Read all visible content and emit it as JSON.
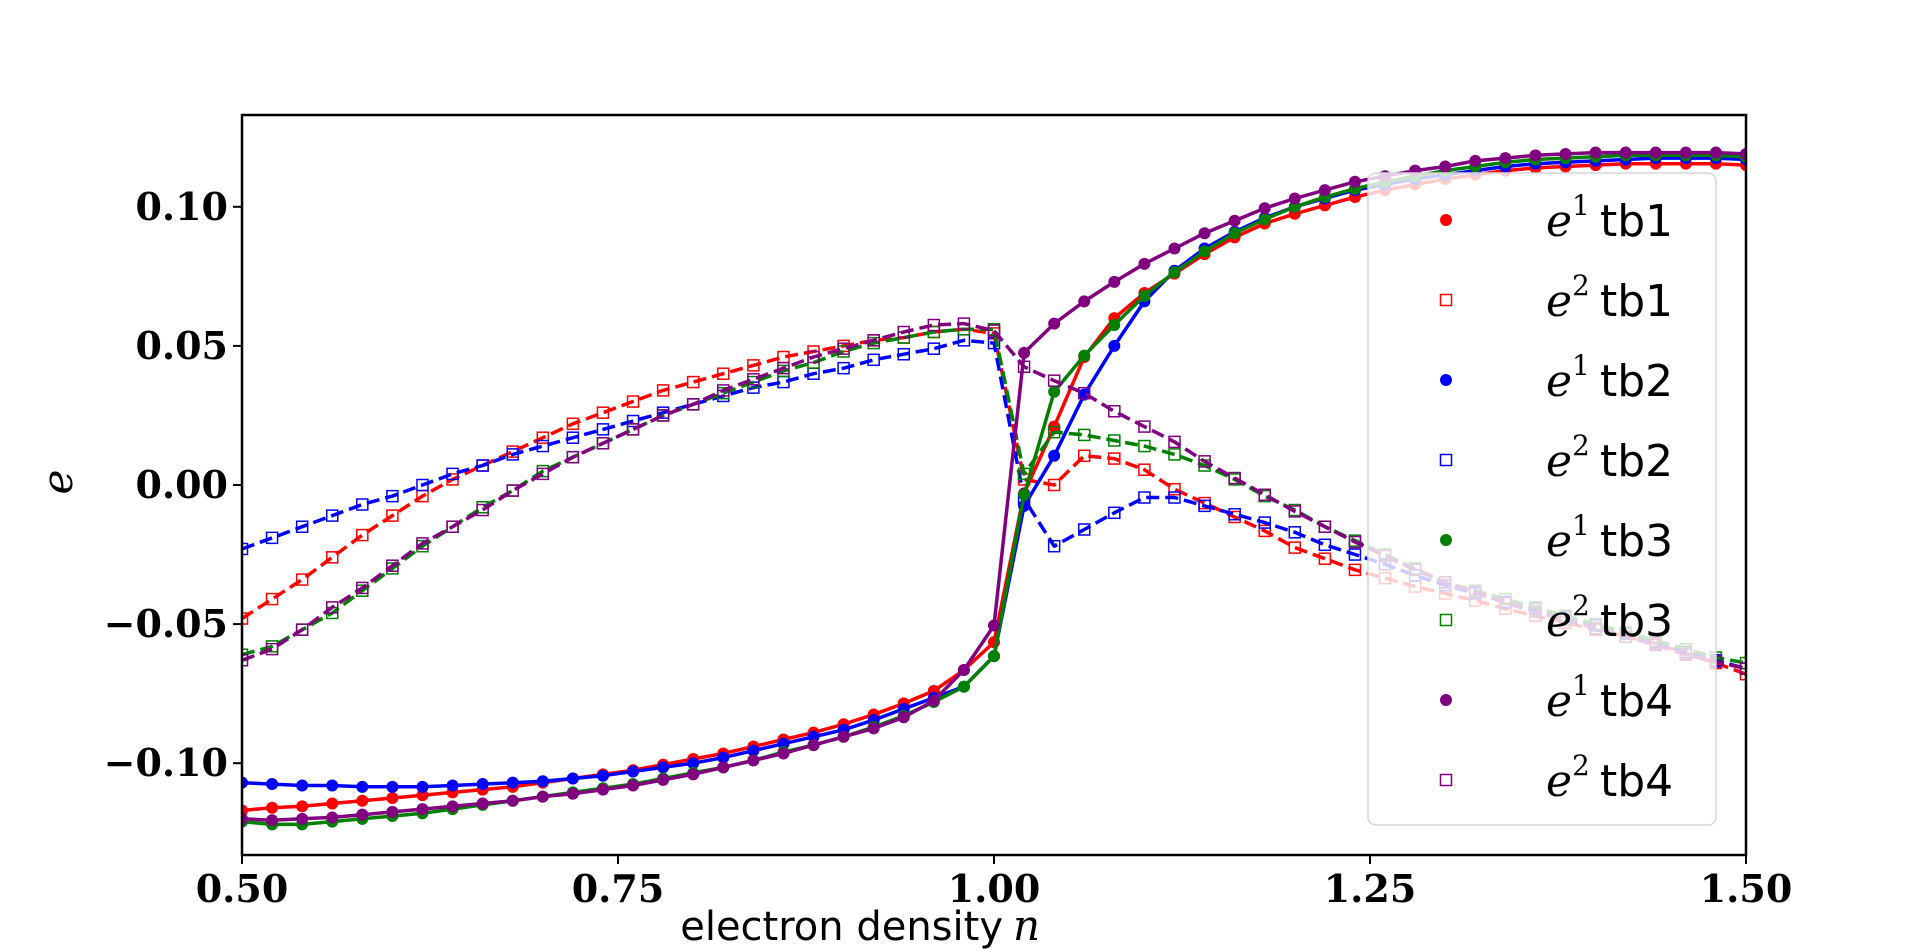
{
  "chart_data": {
    "type": "line",
    "title": "",
    "xlabel": "electron density",
    "xlabel_var": "n",
    "ylabel": "e",
    "xlim": [
      0.5,
      1.5
    ],
    "ylim": [
      -0.133,
      0.133
    ],
    "xticks": [
      0.5,
      0.75,
      1.0,
      1.25,
      1.5
    ],
    "xtick_labels": [
      "0.50",
      "0.75",
      "1.00",
      "1.25",
      "1.50"
    ],
    "yticks": [
      0.1,
      0.05,
      0.0,
      -0.05,
      -0.1
    ],
    "ytick_labels": [
      "0.10",
      "0.05",
      "0.00",
      "−0.05",
      "−0.10"
    ],
    "grid": false,
    "legend_position": "right",
    "x": [
      0.5,
      0.52,
      0.54,
      0.56,
      0.58,
      0.6,
      0.62,
      0.64,
      0.66,
      0.68,
      0.7,
      0.72,
      0.74,
      0.76,
      0.78,
      0.8,
      0.82,
      0.84,
      0.86,
      0.88,
      0.9,
      0.92,
      0.94,
      0.96,
      0.98,
      1.0,
      1.02,
      1.04,
      1.06,
      1.08,
      1.1,
      1.12,
      1.14,
      1.16,
      1.18,
      1.2,
      1.22,
      1.24,
      1.26,
      1.28,
      1.3,
      1.32,
      1.34,
      1.36,
      1.38,
      1.4,
      1.42,
      1.44,
      1.46,
      1.48,
      1.5
    ],
    "series": [
      {
        "name": "tb1",
        "quantity": "e",
        "sup": "1",
        "color": "#ff0000",
        "style": "solid",
        "marker": "filled-circle",
        "values": [
          -0.117,
          -0.116,
          -0.1155,
          -0.1145,
          -0.1135,
          -0.1125,
          -0.1115,
          -0.1105,
          -0.1095,
          -0.1085,
          -0.107,
          -0.1055,
          -0.104,
          -0.1025,
          -0.1005,
          -0.0985,
          -0.0965,
          -0.094,
          -0.0915,
          -0.089,
          -0.086,
          -0.0825,
          -0.0785,
          -0.074,
          -0.0665,
          -0.0565,
          -0.003,
          0.021,
          0.046,
          0.06,
          0.069,
          0.076,
          0.083,
          0.089,
          0.094,
          0.0975,
          0.1005,
          0.1035,
          0.106,
          0.108,
          0.11,
          0.1115,
          0.113,
          0.114,
          0.1145,
          0.115,
          0.1155,
          0.1155,
          0.1155,
          0.1155,
          0.115
        ]
      },
      {
        "name": "tb1",
        "quantity": "e",
        "sup": "2",
        "color": "#ff0000",
        "style": "dashed",
        "marker": "open-square",
        "values": [
          -0.048,
          -0.041,
          -0.034,
          -0.026,
          -0.018,
          -0.011,
          -0.004,
          0.002,
          0.007,
          0.012,
          0.017,
          0.022,
          0.026,
          0.03,
          0.034,
          0.037,
          0.04,
          0.043,
          0.046,
          0.048,
          0.05,
          0.052,
          0.053,
          0.055,
          0.056,
          0.0545,
          0.002,
          0.0,
          0.0105,
          0.0095,
          0.0055,
          -0.0015,
          -0.0065,
          -0.0115,
          -0.0165,
          -0.0225,
          -0.0265,
          -0.0305,
          -0.0335,
          -0.0365,
          -0.039,
          -0.0415,
          -0.0445,
          -0.047,
          -0.0495,
          -0.052,
          -0.0545,
          -0.057,
          -0.0605,
          -0.064,
          -0.068
        ]
      },
      {
        "name": "tb2",
        "quantity": "e",
        "sup": "1",
        "color": "#0000ff",
        "style": "solid",
        "marker": "filled-circle",
        "values": [
          -0.107,
          -0.1075,
          -0.108,
          -0.108,
          -0.1085,
          -0.1085,
          -0.1085,
          -0.108,
          -0.1075,
          -0.107,
          -0.1065,
          -0.1055,
          -0.1045,
          -0.103,
          -0.1015,
          -0.1,
          -0.098,
          -0.0955,
          -0.093,
          -0.0905,
          -0.088,
          -0.0845,
          -0.0805,
          -0.0765,
          -0.0725,
          -0.0615,
          -0.0075,
          0.0105,
          0.0325,
          0.05,
          0.066,
          0.077,
          0.085,
          0.091,
          0.096,
          0.1,
          0.103,
          0.106,
          0.108,
          0.11,
          0.1115,
          0.113,
          0.1145,
          0.1155,
          0.116,
          0.1165,
          0.117,
          0.1175,
          0.1175,
          0.1175,
          0.117
        ]
      },
      {
        "name": "tb2",
        "quantity": "e",
        "sup": "2",
        "color": "#0000ff",
        "style": "dashed",
        "marker": "open-square",
        "values": [
          -0.023,
          -0.019,
          -0.015,
          -0.011,
          -0.007,
          -0.004,
          0.0,
          0.004,
          0.007,
          0.011,
          0.014,
          0.017,
          0.02,
          0.023,
          0.026,
          0.029,
          0.032,
          0.035,
          0.037,
          0.04,
          0.042,
          0.045,
          0.047,
          0.049,
          0.052,
          0.051,
          -0.005,
          -0.022,
          -0.016,
          -0.01,
          -0.0045,
          -0.0045,
          -0.0075,
          -0.0105,
          -0.0135,
          -0.017,
          -0.0215,
          -0.025,
          -0.0285,
          -0.0325,
          -0.036,
          -0.039,
          -0.042,
          -0.0445,
          -0.0475,
          -0.0505,
          -0.0535,
          -0.0565,
          -0.06,
          -0.063,
          -0.066
        ]
      },
      {
        "name": "tb3",
        "quantity": "e",
        "sup": "1",
        "color": "#008000",
        "style": "solid",
        "marker": "filled-circle",
        "values": [
          -0.121,
          -0.122,
          -0.122,
          -0.121,
          -0.12,
          -0.119,
          -0.118,
          -0.1165,
          -0.115,
          -0.1135,
          -0.112,
          -0.1105,
          -0.109,
          -0.1075,
          -0.1055,
          -0.1035,
          -0.1015,
          -0.099,
          -0.096,
          -0.0935,
          -0.0905,
          -0.087,
          -0.083,
          -0.078,
          -0.0725,
          -0.0615,
          -0.0035,
          0.0335,
          0.0465,
          0.0575,
          0.068,
          0.0765,
          0.084,
          0.0905,
          0.0955,
          0.1,
          0.1035,
          0.1065,
          0.109,
          0.111,
          0.113,
          0.1145,
          0.116,
          0.117,
          0.1175,
          0.118,
          0.1185,
          0.1185,
          0.1185,
          0.1185,
          0.118
        ]
      },
      {
        "name": "tb3",
        "quantity": "e",
        "sup": "2",
        "color": "#008000",
        "style": "dashed",
        "marker": "open-square",
        "values": [
          -0.061,
          -0.058,
          -0.052,
          -0.046,
          -0.038,
          -0.03,
          -0.022,
          -0.015,
          -0.008,
          -0.002,
          0.005,
          0.01,
          0.015,
          0.02,
          0.025,
          0.029,
          0.033,
          0.037,
          0.041,
          0.044,
          0.048,
          0.051,
          0.053,
          0.055,
          0.056,
          0.056,
          0.004,
          0.019,
          0.018,
          0.016,
          0.014,
          0.011,
          0.007,
          0.002,
          -0.004,
          -0.009,
          -0.015,
          -0.02,
          -0.025,
          -0.03,
          -0.035,
          -0.038,
          -0.041,
          -0.044,
          -0.047,
          -0.05,
          -0.053,
          -0.056,
          -0.059,
          -0.062,
          -0.064
        ]
      },
      {
        "name": "tb4",
        "quantity": "e",
        "sup": "1",
        "color": "#800080",
        "style": "solid",
        "marker": "filled-circle",
        "values": [
          -0.12,
          -0.1205,
          -0.12,
          -0.1195,
          -0.1185,
          -0.1175,
          -0.1165,
          -0.1155,
          -0.1145,
          -0.1135,
          -0.112,
          -0.111,
          -0.1095,
          -0.108,
          -0.106,
          -0.104,
          -0.1015,
          -0.099,
          -0.0965,
          -0.0935,
          -0.0905,
          -0.0875,
          -0.0835,
          -0.0775,
          -0.0665,
          -0.0505,
          0.0475,
          0.058,
          0.066,
          0.073,
          0.0795,
          0.085,
          0.0905,
          0.095,
          0.0995,
          0.103,
          0.106,
          0.109,
          0.111,
          0.113,
          0.1145,
          0.1165,
          0.1175,
          0.1185,
          0.119,
          0.1195,
          0.1195,
          0.1195,
          0.1195,
          0.1195,
          0.119
        ]
      },
      {
        "name": "tb4",
        "quantity": "e",
        "sup": "2",
        "color": "#800080",
        "style": "dashed",
        "marker": "open-square",
        "values": [
          -0.063,
          -0.059,
          -0.052,
          -0.044,
          -0.037,
          -0.029,
          -0.021,
          -0.015,
          -0.009,
          -0.002,
          0.004,
          0.01,
          0.015,
          0.02,
          0.025,
          0.029,
          0.034,
          0.038,
          0.042,
          0.046,
          0.049,
          0.052,
          0.055,
          0.0575,
          0.058,
          0.0555,
          0.0425,
          0.0375,
          0.033,
          0.0265,
          0.021,
          0.0155,
          0.0085,
          0.0025,
          -0.0035,
          -0.0095,
          -0.015,
          -0.0205,
          -0.0255,
          -0.0305,
          -0.035,
          -0.0385,
          -0.0425,
          -0.0455,
          -0.0485,
          -0.0515,
          -0.0545,
          -0.0575,
          -0.061,
          -0.0635,
          -0.066
        ]
      }
    ]
  }
}
